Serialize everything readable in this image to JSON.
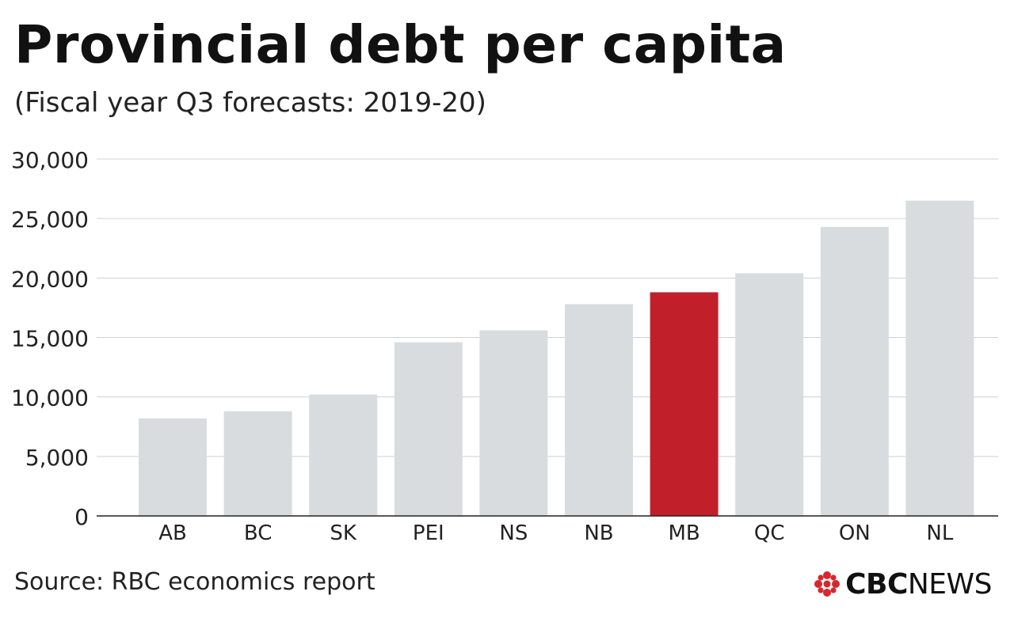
{
  "header": {
    "title": "Provincial debt per capita",
    "subtitle": "(Fiscal year Q3 forecasts: 2019-20)"
  },
  "footer": {
    "source": "Source: RBC economics report",
    "logo_bold": "CBC",
    "logo_regular": "NEWS"
  },
  "colors": {
    "bar_default": "#d9dcdf",
    "bar_highlight": "#c1202b",
    "gridline": "#d0d0d0",
    "axis": "#222222",
    "logo_red": "#d8262f"
  },
  "chart_data": {
    "type": "bar",
    "categories": [
      "AB",
      "BC",
      "SK",
      "PEI",
      "NS",
      "NB",
      "MB",
      "QC",
      "ON",
      "NL"
    ],
    "values": [
      8200,
      8800,
      10200,
      14600,
      15600,
      17800,
      18800,
      20400,
      24300,
      26500
    ],
    "highlight": "MB",
    "title": "Provincial debt per capita",
    "subtitle": "(Fiscal year Q3 forecasts: 2019-20)",
    "xlabel": "",
    "ylabel": "",
    "ylim": [
      0,
      30000
    ],
    "yticks": [
      0,
      5000,
      10000,
      15000,
      20000,
      25000,
      30000
    ],
    "ytick_labels": [
      "0",
      "5,000",
      "10,000",
      "15,000",
      "20,000",
      "25,000",
      "30,000"
    ],
    "grid": true,
    "legend": "none"
  }
}
